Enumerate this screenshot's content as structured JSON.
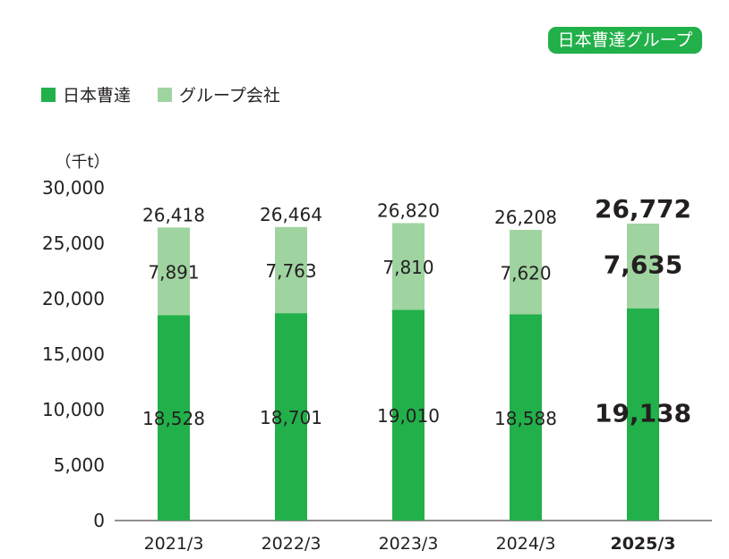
{
  "badge": "日本曹達グループ",
  "chart_data": {
    "type": "bar",
    "stacked": true,
    "unit": "（千t）",
    "categories": [
      "2021/3",
      "2022/3",
      "2023/3",
      "2024/3",
      "2025/3"
    ],
    "highlight_category": "2025/3",
    "series": [
      {
        "name": "日本曹達",
        "values": [
          18528,
          18701,
          19010,
          18588,
          19138
        ],
        "color": "#22b04a"
      },
      {
        "name": "グループ会社",
        "values": [
          7891,
          7763,
          7810,
          7620,
          7635
        ],
        "color": "#9fd4a0"
      }
    ],
    "totals": [
      26418,
      26464,
      26820,
      26208,
      26772
    ],
    "ylim": [
      0,
      30000
    ],
    "yticks": [
      0,
      5000,
      10000,
      15000,
      20000,
      25000,
      30000
    ],
    "ytick_labels": [
      "0",
      "5,000",
      "10,000",
      "15,000",
      "20,000",
      "25,000",
      "30,000"
    ],
    "legend_position": "top-left",
    "grid": false
  }
}
